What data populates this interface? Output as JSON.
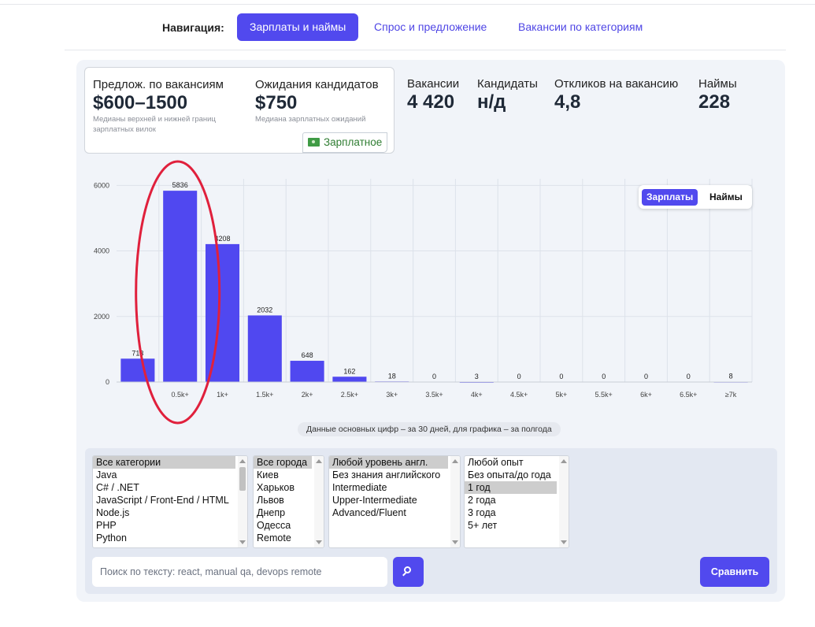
{
  "nav": {
    "label": "Навигация:",
    "items": [
      "Зарплаты и наймы",
      "Спрос и предложение",
      "Вакансии по категориям"
    ]
  },
  "summary": {
    "offer": {
      "label": "Предлож. по вакансиям",
      "value": "$600–1500",
      "note": "Медианы верхней и нижней границ зарплатных вилок"
    },
    "expect": {
      "label": "Ожидания кандидатов",
      "value": "$750",
      "note": "Медиана зарплатных ожиданий"
    },
    "tag": "Зарплатное",
    "vacancies": {
      "label": "Вакансии",
      "value": "4 420"
    },
    "candidates": {
      "label": "Кандидаты",
      "value": "н/д"
    },
    "responses": {
      "label": "Откликов на вакансию",
      "value": "4,8"
    },
    "hires": {
      "label": "Наймы",
      "value": "228"
    }
  },
  "toggle": {
    "active": "Зарплаты",
    "other": "Наймы"
  },
  "chart_data": {
    "type": "bar",
    "categories": [
      "",
      "0.5k+",
      "1k+",
      "1.5k+",
      "2k+",
      "2.5k+",
      "3k+",
      "3.5k+",
      "4k+",
      "4.5k+",
      "5k+",
      "5.5k+",
      "6k+",
      "6.5k+",
      "≥7k"
    ],
    "values": [
      713,
      5836,
      4208,
      2032,
      648,
      162,
      18,
      0,
      3,
      0,
      0,
      0,
      0,
      0,
      8
    ],
    "value_labels": [
      "713",
      "5836",
      "4208",
      "2032",
      "648",
      "162",
      "18",
      "0",
      "3",
      "0",
      "0",
      "0",
      "0",
      "0",
      "8"
    ],
    "yticks": [
      0,
      2000,
      4000,
      6000
    ],
    "ylim": [
      0,
      6200
    ],
    "bar_color": "#5048f0",
    "grid": true,
    "highlight": {
      "shape": "ellipse",
      "color": "#e0203c",
      "categories": [
        "0.5k+"
      ]
    }
  },
  "footnote": "Данные основных цифр – за 30 дней, для графика – за полгода",
  "filters": {
    "categories": [
      "Все категории",
      "Java",
      "C# / .NET",
      "JavaScript / Front-End / HTML",
      "Node.js",
      "PHP",
      "Python"
    ],
    "cities": [
      "Все города",
      "Киев",
      "Харьков",
      "Львов",
      "Днепр",
      "Одесса",
      "Remote"
    ],
    "english": [
      "Любой уровень англ.",
      "Без знания английского",
      "Intermediate",
      "Upper-Intermediate",
      "Advanced/Fluent"
    ],
    "experience": [
      "Любой опыт",
      "Без опыта/до года",
      "1 год",
      "2 года",
      "3 года",
      "5+ лет"
    ],
    "search_placeholder": "Поиск по тексту: react, manual qa, devops remote",
    "compare_label": "Сравнить"
  },
  "colors": {
    "accent": "#5149ee",
    "panel": "#f1f4f9",
    "filters_bg": "#e3e8f2"
  }
}
